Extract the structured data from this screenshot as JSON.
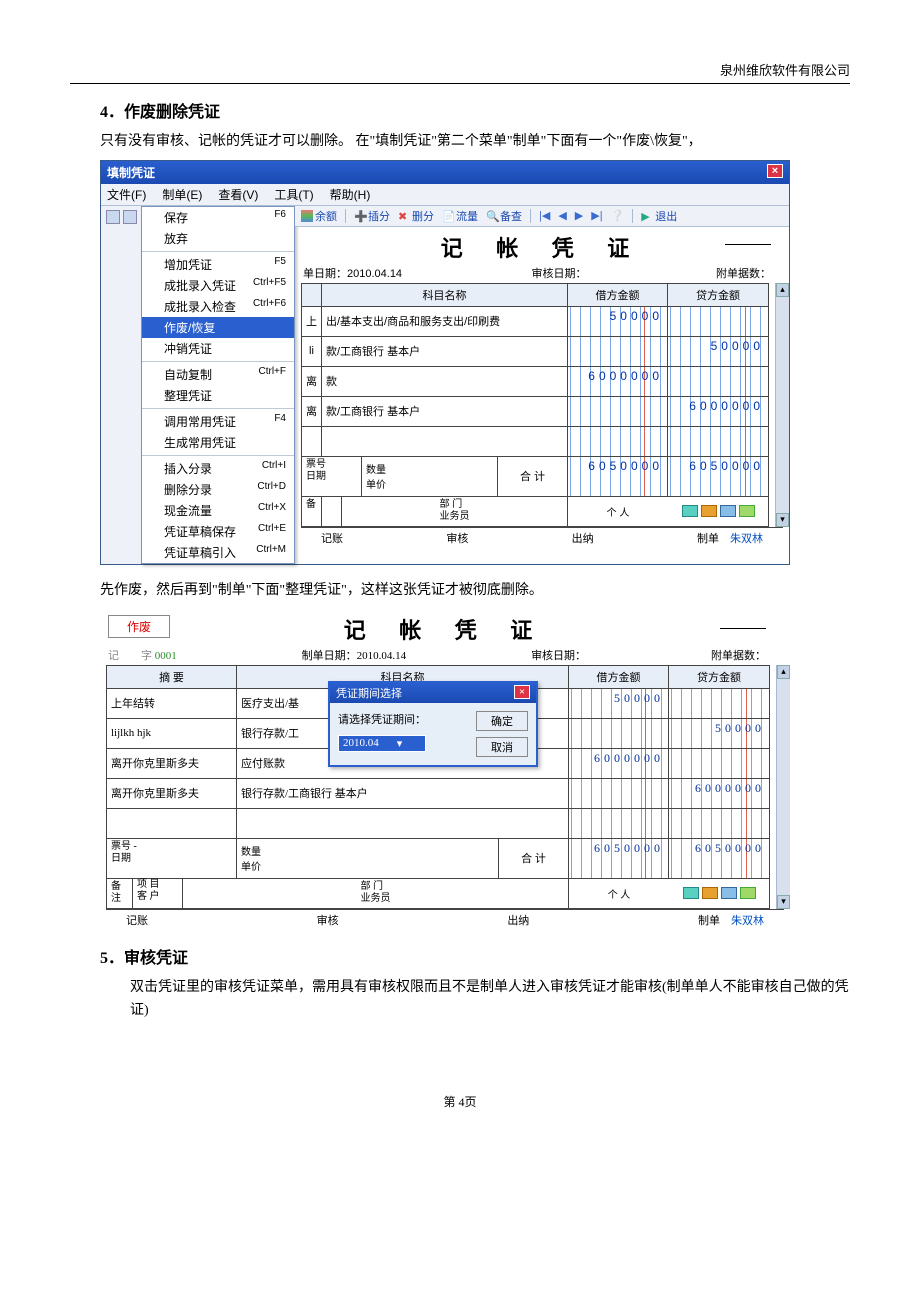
{
  "company": "泉州维欣软件有限公司",
  "section4_title": "4．作废删除凭证",
  "section4_text": "只有没有审核、记帐的凭证才可以删除。 在\"填制凭证\"第二个菜单\"制单\"下面有一个\"作废\\恢复\"，",
  "section4_text2": "先作废，然后再到\"制单\"下面\"整理凭证\"，这样这张凭证才被彻底删除。",
  "section5_title": "5．审核凭证",
  "section5_text": "双击凭证里的审核凭证菜单，需用具有审核权限而且不是制单人进入审核凭证才能审核(制单单人不能审核自己做的凭证)",
  "footer": "第 4页",
  "app1": {
    "title": "填制凭证",
    "menus": [
      "文件(F)",
      "制单(E)",
      "查看(V)",
      "工具(T)",
      "帮助(H)"
    ],
    "dropdown": [
      {
        "label": "保存",
        "key": "F6"
      },
      {
        "label": "放弃",
        "key": ""
      },
      {
        "sep": true
      },
      {
        "label": "增加凭证",
        "key": "F5"
      },
      {
        "label": "成批录入凭证",
        "key": "Ctrl+F5"
      },
      {
        "label": "成批录入检查",
        "key": "Ctrl+F6"
      },
      {
        "label": "作废/恢复",
        "key": "",
        "hover": true
      },
      {
        "label": "冲销凭证",
        "key": ""
      },
      {
        "sep": true
      },
      {
        "label": "自动复制",
        "key": "Ctrl+F"
      },
      {
        "label": "整理凭证",
        "key": ""
      },
      {
        "sep": true
      },
      {
        "label": "调用常用凭证",
        "key": "F4"
      },
      {
        "label": "生成常用凭证",
        "key": ""
      },
      {
        "sep": true
      },
      {
        "label": "插入分录",
        "key": "Ctrl+I"
      },
      {
        "label": "删除分录",
        "key": "Ctrl+D"
      },
      {
        "label": "现金流量",
        "key": "Ctrl+X"
      },
      {
        "label": "凭证草稿保存",
        "key": "Ctrl+E"
      },
      {
        "label": "凭证草稿引入",
        "key": "Ctrl+M"
      }
    ],
    "toolbar": {
      "balance": "余额",
      "insert": "插分",
      "delete": "删分",
      "flow": "流量",
      "check": "备查",
      "exit": "退出"
    },
    "doc_title": "记 帐 凭 证",
    "info": {
      "date_label": "单日期：",
      "date": "2010.04.14",
      "audit_label": "审核日期：",
      "attach_label": "附单据数："
    },
    "grid": {
      "headers": [
        "",
        "科目名称",
        "借方金额",
        "贷方金额"
      ],
      "rows": [
        {
          "left": "上",
          "subj": "出/基本支出/商品和服务支出/印刷费",
          "debit": "50000",
          "credit": ""
        },
        {
          "left": "li",
          "subj": "款/工商银行 基本户",
          "debit": "",
          "credit": "50000"
        },
        {
          "left": "离",
          "subj": "款",
          "debit": "6000000",
          "credit": ""
        },
        {
          "left": "离",
          "subj": "款/工商银行 基本户",
          "debit": "",
          "credit": "6000000"
        },
        {
          "left": "",
          "subj": "",
          "debit": "",
          "credit": ""
        }
      ],
      "total_label": "合 计",
      "total_debit": "6050000",
      "total_credit": "6050000"
    },
    "bottom": {
      "bill": "票号\n日期",
      "qty": "数量\n单价",
      "remark_label": "备",
      "dept": "部 门",
      "biz": "业务员",
      "person": "个 人"
    },
    "status": {
      "acct": "记账",
      "audit": "审核",
      "cashier": "出纳",
      "maker_label": "制单",
      "maker": "朱双林"
    }
  },
  "app2": {
    "void": "作废",
    "doc_title": "记 帐 凭 证",
    "prefix": "记",
    "word": "字",
    "no": "0001",
    "info": {
      "date_label": "制单日期：",
      "date": "2010.04.14",
      "audit_label": "审核日期：",
      "attach_label": "附单据数："
    },
    "grid": {
      "headers": [
        "摘 要",
        "科目名称",
        "借方金额",
        "贷方金额"
      ],
      "rows": [
        {
          "sum": "上年结转",
          "subj": "医疗支出/基",
          "debit": "50000",
          "credit": ""
        },
        {
          "sum": "lijlkh hjk",
          "subj": "银行存款/工",
          "debit": "",
          "credit": "50000"
        },
        {
          "sum": "离开你克里斯多夫",
          "subj": "应付账款",
          "debit": "6000000",
          "credit": ""
        },
        {
          "sum": "离开你克里斯多夫",
          "subj": "银行存款/工商银行 基本户",
          "debit": "",
          "credit": "6000000"
        },
        {
          "sum": "",
          "subj": "",
          "debit": "",
          "credit": ""
        }
      ],
      "total_label": "合 计",
      "total_debit": "6050000",
      "total_credit": "6050000"
    },
    "dialog": {
      "title": "凭证期间选择",
      "label": "请选择凭证期间：",
      "value": "2010.04",
      "ok": "确定",
      "cancel": "取消"
    },
    "bottom": {
      "bill": "票号     -\n日期",
      "qty": "数量\n单价",
      "remark": "备注",
      "item": "项 目",
      "cust": "客 户",
      "dept": "部 门",
      "biz": "业务员",
      "person": "个 人"
    },
    "status": {
      "acct": "记账",
      "audit": "审核",
      "cashier": "出纳",
      "maker_label": "制单",
      "maker": "朱双林"
    }
  }
}
